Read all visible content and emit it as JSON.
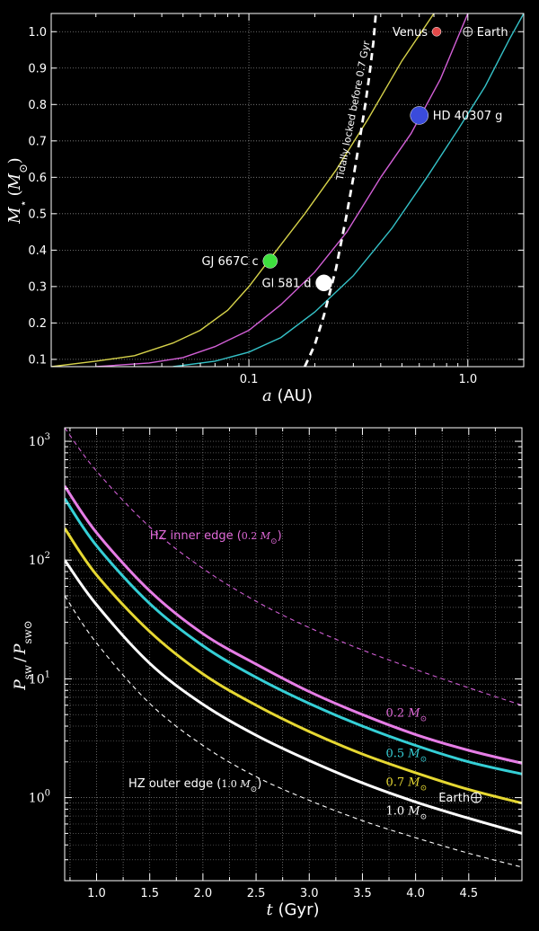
{
  "chart_data": [
    {
      "type": "line",
      "xlabel_var": "a",
      "xlabel_unit": "(AU)",
      "ylabel_var": "M",
      "ylabel_sub": "⋆",
      "ylabel_unit_open": "(M",
      "ylabel_unit_sub": "⊙",
      "ylabel_unit_close": ")",
      "xscale": "log",
      "xlim": [
        0.0125,
        1.8
      ],
      "ylim": [
        0.08,
        1.05
      ],
      "grid": true,
      "xticks": [
        {
          "value": 0.1,
          "label": "0.1"
        },
        {
          "value": 1.0,
          "label": "1.0"
        }
      ],
      "yticks": [
        {
          "value": 0.1,
          "label": "0.1"
        },
        {
          "value": 0.2,
          "label": "0.2"
        },
        {
          "value": 0.3,
          "label": "0.3"
        },
        {
          "value": 0.4,
          "label": "0.4"
        },
        {
          "value": 0.5,
          "label": "0.5"
        },
        {
          "value": 0.6,
          "label": "0.6"
        },
        {
          "value": 0.7,
          "label": "0.7"
        },
        {
          "value": 0.8,
          "label": "0.8"
        },
        {
          "value": 0.9,
          "label": "0.9"
        },
        {
          "value": 1.0,
          "label": "1.0"
        }
      ],
      "series": [
        {
          "color": "#d6d24a",
          "x": [
            0.0125,
            0.02,
            0.03,
            0.045,
            0.06,
            0.08,
            0.1,
            0.13,
            0.18,
            0.25,
            0.35,
            0.5,
            0.7
          ],
          "y": [
            0.08,
            0.095,
            0.11,
            0.145,
            0.18,
            0.235,
            0.3,
            0.39,
            0.5,
            0.62,
            0.76,
            0.92,
            1.05
          ]
        },
        {
          "color": "#d25fd6",
          "x": [
            0.02,
            0.035,
            0.05,
            0.07,
            0.1,
            0.14,
            0.2,
            0.28,
            0.4,
            0.55,
            0.75,
            1.0
          ],
          "y": [
            0.08,
            0.09,
            0.105,
            0.135,
            0.18,
            0.25,
            0.34,
            0.45,
            0.6,
            0.72,
            0.87,
            1.05
          ]
        },
        {
          "color": "#35c2c8",
          "x": [
            0.045,
            0.07,
            0.1,
            0.14,
            0.2,
            0.3,
            0.45,
            0.65,
            0.9,
            1.2,
            1.55,
            1.8
          ],
          "y": [
            0.08,
            0.095,
            0.12,
            0.16,
            0.23,
            0.33,
            0.46,
            0.6,
            0.73,
            0.85,
            0.98,
            1.05
          ]
        },
        {
          "color": "#ffffff",
          "dashed": true,
          "x": [
            0.18,
            0.2,
            0.22,
            0.25,
            0.28,
            0.3,
            0.32,
            0.34,
            0.355,
            0.37,
            0.38
          ],
          "y": [
            0.08,
            0.14,
            0.22,
            0.35,
            0.5,
            0.6,
            0.7,
            0.8,
            0.88,
            0.97,
            1.05
          ]
        }
      ],
      "points": [
        {
          "label": "Venus",
          "x": 0.72,
          "y": 1.0,
          "color": "#e34a4a",
          "r": 5,
          "label_side": "left"
        },
        {
          "label": "Earth",
          "x": 1.0,
          "y": 1.0,
          "marker": "earth",
          "label_side": "right"
        },
        {
          "label": "HD 40307 g",
          "x": 0.6,
          "y": 0.77,
          "color": "#3a4bdb",
          "r": 10,
          "label_side": "right"
        },
        {
          "label": "GJ 667C c",
          "x": 0.125,
          "y": 0.37,
          "color": "#3ee03e",
          "r": 8,
          "label_side": "left"
        },
        {
          "label": "Gl 581 d",
          "x": 0.22,
          "y": 0.31,
          "color": "#ffffff",
          "r": 9,
          "label_side": "left"
        }
      ],
      "annotations": [
        {
          "text": "Tidally locked before 0.7 Gyr",
          "x": 0.37,
          "y": 0.97,
          "angle": -79
        }
      ]
    },
    {
      "type": "line",
      "xlabel_var": "t",
      "xlabel_unit": "(Gyr)",
      "ylabel_top": "P",
      "ylabel_top_sub": "sw",
      "ylabel_bot": "P",
      "ylabel_bot_sub": "sw⊙",
      "yscale": "log",
      "xlim": [
        0.7,
        5.0
      ],
      "ylim": [
        0.2,
        1300
      ],
      "grid": true,
      "xticks": [
        {
          "value": 1.0,
          "label": "1.0"
        },
        {
          "value": 1.5,
          "label": "1.5"
        },
        {
          "value": 2.0,
          "label": "2.0"
        },
        {
          "value": 2.5,
          "label": "2.5"
        },
        {
          "value": 3.0,
          "label": "3.0"
        },
        {
          "value": 3.5,
          "label": "3.5"
        },
        {
          "value": 4.0,
          "label": "4.0"
        },
        {
          "value": 4.5,
          "label": "4.5"
        }
      ],
      "yticks": [
        {
          "value": 1,
          "label": "10",
          "exp": "0"
        },
        {
          "value": 10,
          "label": "10",
          "exp": "1"
        },
        {
          "value": 100,
          "label": "10",
          "exp": "2"
        },
        {
          "value": 1000,
          "label": "10",
          "exp": "3"
        }
      ],
      "series": [
        {
          "name": "0.2 M⊙",
          "color": "#e67de6",
          "x": [
            0.7,
            1.0,
            1.5,
            2.0,
            2.5,
            3.0,
            3.5,
            4.0,
            4.5,
            5.0
          ],
          "y": [
            420,
            170,
            55,
            24,
            13.3,
            7.8,
            5.0,
            3.4,
            2.5,
            1.95
          ],
          "label_pos": [
            3.72,
            4.8
          ],
          "label_color": "#e06ad8"
        },
        {
          "name": "0.5 M⊙",
          "color": "#35cfd6",
          "x": [
            0.7,
            1.0,
            1.5,
            2.0,
            2.5,
            3.0,
            3.5,
            4.0,
            4.5,
            5.0
          ],
          "y": [
            330,
            132,
            43,
            19,
            10.3,
            6.2,
            4.0,
            2.75,
            2.0,
            1.58
          ],
          "label_pos": [
            3.72,
            2.2
          ],
          "label_color": "#35cfd6"
        },
        {
          "name": "0.7 M⊙",
          "color": "#e6d832",
          "x": [
            0.7,
            1.0,
            1.5,
            2.0,
            2.5,
            3.0,
            3.5,
            4.0,
            4.5,
            5.0
          ],
          "y": [
            185,
            75,
            25,
            11,
            6.0,
            3.6,
            2.33,
            1.62,
            1.17,
            0.9
          ],
          "label_pos": [
            3.72,
            1.26
          ],
          "label_color": "#e6d832"
        },
        {
          "name": "1.0 M⊙",
          "color": "#ffffff",
          "x": [
            0.7,
            1.0,
            1.5,
            2.0,
            2.5,
            3.0,
            3.5,
            4.0,
            4.5,
            5.0
          ],
          "y": [
            100,
            42,
            13.5,
            6.1,
            3.35,
            2.05,
            1.33,
            0.92,
            0.67,
            0.5
          ],
          "label_pos": [
            3.72,
            0.72
          ],
          "label_color": "#ffffff"
        },
        {
          "name": "HZ inner edge (0.2 M⊙)",
          "color": "#d25fd6",
          "dashed": true,
          "x": [
            0.7,
            1.0,
            1.5,
            2.0,
            2.5,
            3.0,
            3.5,
            4.0,
            4.5,
            5.0
          ],
          "y": [
            1300,
            560,
            190,
            85,
            45,
            27,
            17.5,
            12,
            8.4,
            6.0
          ],
          "label_pos": [
            1.5,
            150
          ],
          "label_color": "#e06ad8"
        },
        {
          "name": "HZ outer edge (1.0 M⊙)",
          "color": "#ffffff",
          "dashed": true,
          "x": [
            0.7,
            1.0,
            1.5,
            2.0,
            2.5,
            3.0,
            3.5,
            4.0,
            4.5,
            5.0
          ],
          "y": [
            50,
            20,
            6.2,
            2.75,
            1.5,
            0.95,
            0.64,
            0.46,
            0.34,
            0.26
          ],
          "label_pos": [
            1.3,
            1.22
          ],
          "label_color": "#ffffff"
        }
      ],
      "points": [
        {
          "label": "Earth",
          "x": 4.57,
          "y": 1.0,
          "marker": "earth",
          "label_side": "left"
        }
      ]
    }
  ]
}
